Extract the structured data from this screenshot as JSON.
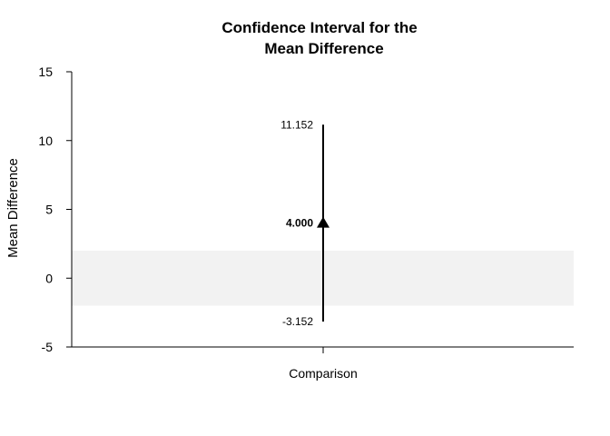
{
  "chart_data": {
    "type": "interval",
    "title_lines": [
      "Confidence Interval for the",
      "Mean Difference"
    ],
    "xlabel": "Comparison",
    "ylabel": "Mean Difference",
    "ylim": [
      -5,
      15
    ],
    "yticks": [
      -5,
      0,
      5,
      10,
      15
    ],
    "ytick_labels": [
      "-5",
      "0",
      "5",
      "10",
      "15"
    ],
    "band": {
      "lower": -2,
      "upper": 2,
      "color": "#f2f2f2"
    },
    "estimate": {
      "value": 4.0,
      "label": "4.000"
    },
    "interval": {
      "lower": -3.152,
      "upper": 11.152,
      "lower_label": "-3.152",
      "upper_label": "11.152"
    },
    "colors": {
      "line": "#000000",
      "marker": "#000000"
    }
  }
}
